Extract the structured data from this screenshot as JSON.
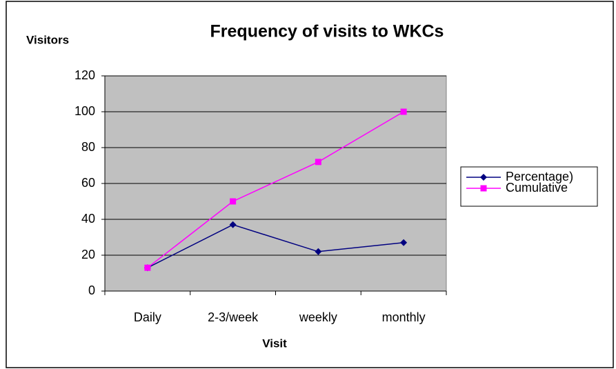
{
  "chart_data": {
    "type": "line",
    "title": "Frequency of visits to WKCs",
    "y_label": "Visitors",
    "x_label": "Visit",
    "categories": [
      "Daily",
      "2-3/week",
      "weekly",
      "monthly"
    ],
    "series": [
      {
        "name": "Percentage)",
        "color": "#000080",
        "marker": "diamond",
        "values": [
          13,
          37,
          22,
          27
        ]
      },
      {
        "name": "Cumulative",
        "color": "#ff00ff",
        "marker": "square",
        "values": [
          13,
          50,
          72,
          100
        ]
      }
    ],
    "ylim": [
      0,
      120
    ],
    "yticks": [
      0,
      20,
      40,
      60,
      80,
      100,
      120
    ],
    "grid": true,
    "legend": "right"
  }
}
